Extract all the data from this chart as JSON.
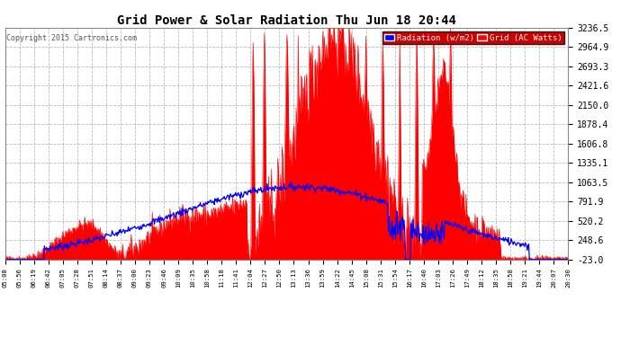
{
  "title": "Grid Power & Solar Radiation Thu Jun 18 20:44",
  "copyright": "Copyright 2015 Cartronics.com",
  "yticks": [
    3236.5,
    2964.9,
    2693.3,
    2421.6,
    2150.0,
    1878.4,
    1606.8,
    1335.1,
    1063.5,
    791.9,
    520.2,
    248.6,
    -23.0
  ],
  "ymin": -23.0,
  "ymax": 3236.5,
  "bg_color": "#ffffff",
  "plot_bg_color": "#ffffff",
  "grid_color": "#aaaaaa",
  "fill_color": "#ff0000",
  "line_color": "#0000ff",
  "legend_radiation_bg": "#ff0000",
  "radiation_label": "Radiation (w/m2)",
  "grid_label": "Grid (AC Watts)",
  "xtick_labels": [
    "05:08",
    "05:56",
    "06:19",
    "06:42",
    "07:05",
    "07:28",
    "07:51",
    "08:14",
    "08:37",
    "09:00",
    "09:23",
    "09:46",
    "10:09",
    "10:35",
    "10:58",
    "11:18",
    "11:41",
    "12:04",
    "12:27",
    "12:50",
    "13:13",
    "13:36",
    "13:59",
    "14:22",
    "14:45",
    "15:08",
    "15:31",
    "15:54",
    "16:17",
    "16:40",
    "17:03",
    "17:26",
    "17:49",
    "18:12",
    "18:35",
    "18:58",
    "19:21",
    "19:44",
    "20:07",
    "20:30"
  ]
}
